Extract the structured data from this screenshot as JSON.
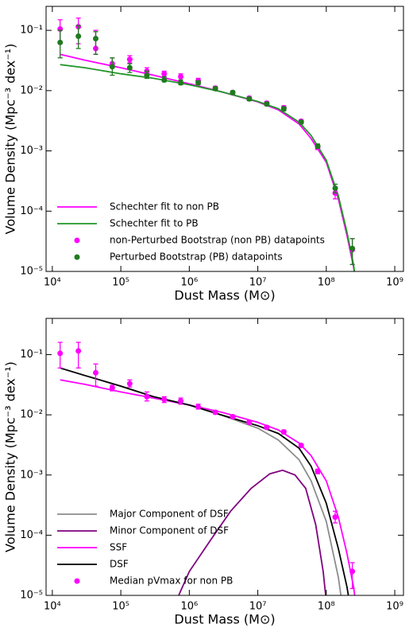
{
  "chart_data": [
    {
      "type": "line",
      "xscale": "log",
      "yscale": "log",
      "grid": false,
      "legend": "lower left",
      "x_label": "Dust Mass (M⊙)",
      "y_label": "Volume Density (Mpc⁻³ dex⁻¹)",
      "xlim": [
        8100,
        1340000000
      ],
      "ylim": [
        1e-05,
        0.25
      ],
      "xticks": [
        {
          "value": 10000,
          "label": "10⁴"
        },
        {
          "value": 100000,
          "label": "10⁵"
        },
        {
          "value": 1000000,
          "label": "10⁶"
        },
        {
          "value": 10000000,
          "label": "10⁷"
        },
        {
          "value": 100000000,
          "label": "10⁸"
        },
        {
          "value": 1000000000,
          "label": "10⁹"
        }
      ],
      "yticks": [
        {
          "value": 1e-05,
          "label": "10⁻⁵"
        },
        {
          "value": 0.0001,
          "label": "10⁻⁴"
        },
        {
          "value": 0.001,
          "label": "10⁻³"
        },
        {
          "value": 0.01,
          "label": "10⁻²"
        },
        {
          "value": 0.1,
          "label": "10⁻¹"
        }
      ],
      "series": [
        {
          "name": "Schechter fit to non PB",
          "color": "#ff00ff",
          "marker": "line",
          "x": [
            13000,
            30000,
            100000,
            300000,
            1000000,
            3000000,
            10000000,
            20000000,
            40000000,
            60000000,
            100000000,
            150000000,
            200000000,
            250000000,
            300000000
          ],
          "values": [
            0.04,
            0.032,
            0.024,
            0.018,
            0.013,
            0.0095,
            0.0065,
            0.0048,
            0.0028,
            0.0016,
            0.00065,
            0.00016,
            4e-05,
            1.2e-05,
            3e-06
          ]
        },
        {
          "name": "Schechter fit to PB",
          "color": "#22962a",
          "marker": "line",
          "x": [
            13000,
            30000,
            100000,
            300000,
            1000000,
            3000000,
            10000000,
            20000000,
            40000000,
            60000000,
            100000000,
            150000000,
            200000000,
            250000000,
            300000000
          ],
          "values": [
            0.027,
            0.024,
            0.019,
            0.016,
            0.0125,
            0.0095,
            0.0066,
            0.005,
            0.003,
            0.0018,
            0.0007,
            0.00018,
            4.5e-05,
            1.3e-05,
            3e-06
          ]
        },
        {
          "name": "non-Perturbed Bootstrap (non PB) datapoints",
          "color": "#ff00ff",
          "marker": "point",
          "x": [
            13000,
            24000,
            43000,
            75000,
            135000,
            240000,
            430000,
            750000,
            1350000,
            2400000,
            4300000,
            7500000,
            13500000,
            24000000,
            43000000,
            75000000,
            135000000,
            240000000
          ],
          "values": [
            0.105,
            0.115,
            0.05,
            0.028,
            0.033,
            0.021,
            0.019,
            0.017,
            0.0145,
            0.011,
            0.0093,
            0.0075,
            0.0062,
            0.0052,
            0.0031,
            0.00115,
            0.0002,
            2.3e-05
          ],
          "lower": [
            0.06,
            0.06,
            0.04,
            0.025,
            0.029,
            0.018,
            0.017,
            0.015,
            0.013,
            0.0103,
            0.0087,
            0.007,
            0.0058,
            0.0048,
            0.0029,
            0.00105,
            0.00016,
            1.3e-05
          ],
          "upper": [
            0.15,
            0.16,
            0.1,
            0.035,
            0.038,
            0.024,
            0.021,
            0.019,
            0.016,
            0.0118,
            0.0099,
            0.008,
            0.0066,
            0.0056,
            0.0033,
            0.00125,
            0.00025,
            3.5e-05
          ]
        },
        {
          "name": "Perturbed Bootstrap (PB) datapoints",
          "color": "#1f7a1f",
          "marker": "point",
          "x": [
            13000,
            24000,
            43000,
            75000,
            135000,
            240000,
            430000,
            750000,
            1350000,
            2400000,
            4300000,
            7500000,
            13500000,
            24000000,
            43000000,
            75000000,
            135000000,
            240000000
          ],
          "values": [
            0.063,
            0.08,
            0.073,
            0.025,
            0.024,
            0.018,
            0.015,
            0.0135,
            0.0135,
            0.0108,
            0.0093,
            0.0073,
            0.006,
            0.005,
            0.003,
            0.0012,
            0.00024,
            2.4e-05
          ],
          "lower": [
            0.035,
            0.05,
            0.04,
            0.018,
            0.02,
            0.016,
            0.014,
            0.0125,
            0.0125,
            0.0101,
            0.0087,
            0.0068,
            0.0056,
            0.0046,
            0.0028,
            0.0011,
            0.0002,
            1.3e-05
          ],
          "upper": [
            0.1,
            0.12,
            0.095,
            0.035,
            0.028,
            0.021,
            0.017,
            0.015,
            0.0145,
            0.0115,
            0.0099,
            0.0078,
            0.0064,
            0.0054,
            0.0032,
            0.0013,
            0.00028,
            3.5e-05
          ]
        }
      ]
    },
    {
      "type": "line",
      "xscale": "log",
      "yscale": "log",
      "grid": false,
      "legend": "lower left",
      "x_label": "Dust Mass (M⊙)",
      "y_label": "Volume Density (Mpc⁻³ dex⁻¹)",
      "xlim": [
        8100,
        1340000000
      ],
      "ylim": [
        1e-05,
        0.4
      ],
      "xticks": [
        {
          "value": 10000,
          "label": "10⁴"
        },
        {
          "value": 100000,
          "label": "10⁵"
        },
        {
          "value": 1000000,
          "label": "10⁶"
        },
        {
          "value": 10000000,
          "label": "10⁷"
        },
        {
          "value": 100000000,
          "label": "10⁸"
        },
        {
          "value": 1000000000,
          "label": "10⁹"
        }
      ],
      "yticks": [
        {
          "value": 1e-05,
          "label": "10⁻⁵"
        },
        {
          "value": 0.0001,
          "label": "10⁻⁴"
        },
        {
          "value": 0.001,
          "label": "10⁻³"
        },
        {
          "value": 0.01,
          "label": "10⁻²"
        },
        {
          "value": 0.1,
          "label": "10⁻¹"
        }
      ],
      "series": [
        {
          "name": "Major Component of DSF",
          "color": "#8c8c8c",
          "marker": "line",
          "x": [
            13000,
            30000,
            100000,
            300000,
            1000000,
            3000000,
            10000000,
            20000000,
            40000000,
            60000000,
            100000000,
            150000000,
            200000000
          ],
          "values": [
            0.06,
            0.045,
            0.03,
            0.02,
            0.0145,
            0.0098,
            0.006,
            0.0038,
            0.0018,
            0.0008,
            0.00017,
            2e-05,
            2e-06
          ]
        },
        {
          "name": "Minor Component of DSF",
          "color": "#800080",
          "marker": "line",
          "x": [
            700000,
            1000000,
            2000000,
            4000000,
            8000000,
            15000000,
            23000000,
            35000000,
            50000000,
            70000000,
            90000000,
            100000000
          ],
          "values": [
            1e-05,
            2.5e-05,
            8e-05,
            0.00025,
            0.0006,
            0.00105,
            0.0012,
            0.001,
            0.0006,
            0.00015,
            2.5e-05,
            8e-06
          ]
        },
        {
          "name": "SSF",
          "color": "#ff00ff",
          "marker": "line",
          "x": [
            13000,
            30000,
            100000,
            300000,
            1000000,
            3000000,
            10000000,
            20000000,
            40000000,
            60000000,
            100000000,
            150000000,
            200000000,
            250000000,
            300000000
          ],
          "values": [
            0.038,
            0.032,
            0.024,
            0.019,
            0.0145,
            0.011,
            0.0075,
            0.0056,
            0.0034,
            0.0021,
            0.0008,
            0.0002,
            5e-05,
            1.4e-05,
            3e-06
          ]
        },
        {
          "name": "DSF",
          "color": "#000000",
          "marker": "line",
          "x": [
            13000,
            30000,
            100000,
            300000,
            1000000,
            3000000,
            10000000,
            20000000,
            40000000,
            60000000,
            100000000,
            150000000,
            200000000,
            250000000
          ],
          "values": [
            0.06,
            0.045,
            0.03,
            0.02,
            0.0145,
            0.0099,
            0.0066,
            0.0049,
            0.0028,
            0.0014,
            0.00034,
            6e-05,
            1.4e-05,
            3e-06
          ]
        },
        {
          "name": "Median pVmax for non PB",
          "color": "#ff00ff",
          "marker": "point",
          "x": [
            13000,
            24000,
            43000,
            75000,
            135000,
            240000,
            430000,
            750000,
            1350000,
            2400000,
            4300000,
            7500000,
            13500000,
            24000000,
            43000000,
            75000000,
            135000000,
            240000000
          ],
          "values": [
            0.105,
            0.115,
            0.05,
            0.028,
            0.033,
            0.02,
            0.018,
            0.017,
            0.0135,
            0.011,
            0.0093,
            0.0075,
            0.0062,
            0.0052,
            0.0031,
            0.00115,
            0.0002,
            2.5e-05
          ],
          "lower": [
            0.06,
            0.06,
            0.03,
            0.025,
            0.029,
            0.017,
            0.016,
            0.015,
            0.0125,
            0.0103,
            0.0087,
            0.007,
            0.0058,
            0.0048,
            0.0029,
            0.00105,
            0.00016,
            1.3e-05
          ],
          "upper": [
            0.16,
            0.16,
            0.07,
            0.031,
            0.038,
            0.024,
            0.02,
            0.019,
            0.015,
            0.0118,
            0.0099,
            0.008,
            0.0066,
            0.0056,
            0.0033,
            0.00125,
            0.00025,
            3.5e-05
          ]
        }
      ]
    }
  ]
}
